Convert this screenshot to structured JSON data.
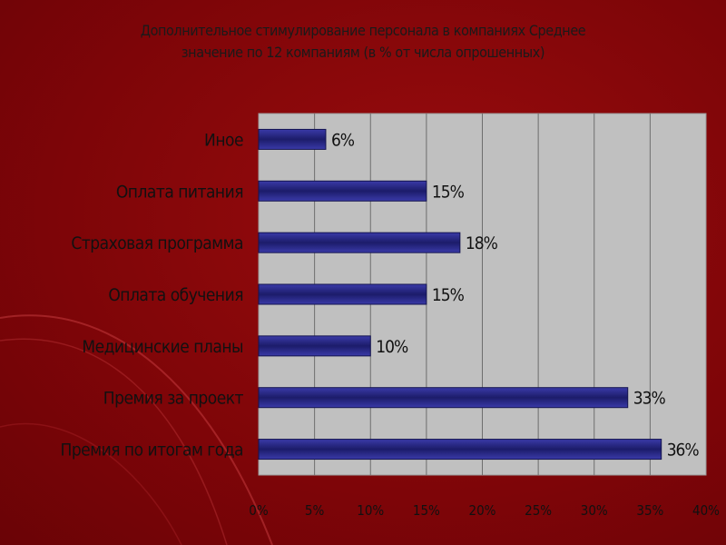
{
  "title_line1": "Дополнительное стимулирование персонала в компаниях Среднее",
  "title_line2": "значение по 12 компаниям (в % от числа опрошенных)",
  "chart_data": {
    "type": "bar",
    "orientation": "horizontal",
    "categories": [
      "Иное",
      "Оплата питания",
      "Страховая программа",
      "Оплата обучения",
      "Медицинские планы",
      "Премия за проект",
      "Премия по итогам года"
    ],
    "values": [
      6,
      15,
      18,
      15,
      10,
      33,
      36
    ],
    "data_labels": [
      "6%",
      "15%",
      "18%",
      "15%",
      "10%",
      "33%",
      "36%"
    ],
    "xlim": [
      0,
      40
    ],
    "x_ticks": [
      0,
      5,
      10,
      15,
      20,
      25,
      30,
      35,
      40
    ],
    "x_tick_labels": [
      "0%",
      "5%",
      "10%",
      "15%",
      "20%",
      "25%",
      "30%",
      "35%",
      "40%"
    ],
    "grid": true,
    "colors": {
      "bar": "#2a2a8c",
      "plot_bg": "#c0c0c0",
      "grid": "#6e6e6e",
      "text": "#111111"
    }
  }
}
